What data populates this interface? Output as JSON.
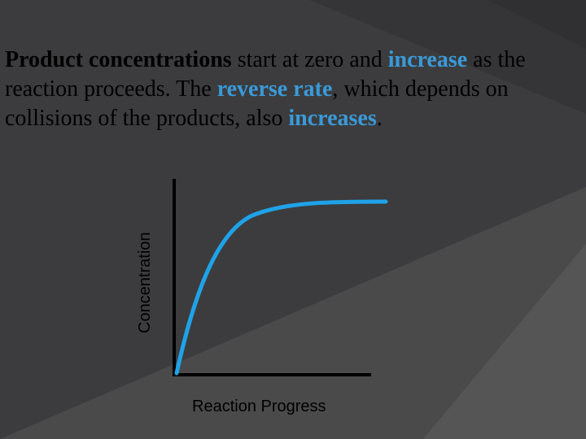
{
  "slide": {
    "caption": {
      "p1": "Product concentrations",
      "p2": " start at zero and ",
      "p3": "increase",
      "p4": " as the reaction proceeds. The ",
      "p5": "reverse rate",
      "p6": ", which depends on collisions of the products, also ",
      "p7": "increases",
      "p8": "."
    }
  },
  "colors": {
    "background": "#4a4a4a",
    "highlight": "#3a9ad9",
    "curve": "#1fa3e8",
    "axis": "#000000"
  },
  "chart_data": {
    "type": "line",
    "xlabel": "Reaction Progress",
    "ylabel": "Concentration",
    "grid": false,
    "curve_shape": "rises from zero and levels off"
  }
}
